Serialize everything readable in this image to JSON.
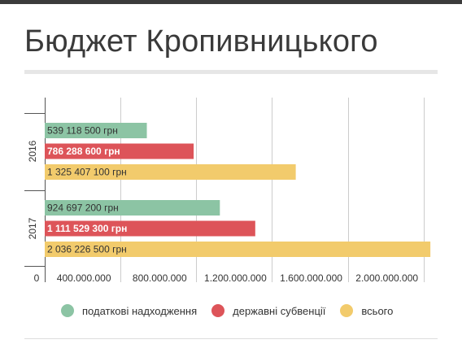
{
  "title": "Бюджет Кропивницького",
  "colors": {
    "tax": "#8cc4a4",
    "subsidies": "#dd5459",
    "total": "#f2cb6c",
    "grid": "#cccccc",
    "axis": "#555555"
  },
  "chart_data": {
    "type": "bar",
    "orientation": "horizontal",
    "categories": [
      "2016",
      "2017"
    ],
    "series": [
      {
        "name": "податкові надходження",
        "color": "#8cc4a4",
        "values": [
          539118500,
          924697200
        ],
        "labels": [
          "539 118 500 грн",
          "924 697 200 грн"
        ]
      },
      {
        "name": "державні субвенції",
        "color": "#dd5459",
        "values": [
          786288600,
          1111529300
        ],
        "labels": [
          "786 288 600 грн",
          "1 111 529 300 грн"
        ]
      },
      {
        "name": "всього",
        "color": "#f2cb6c",
        "values": [
          1325407100,
          2036226500
        ],
        "labels": [
          "1 325 407 100 грн",
          "2 036 226 500 грн"
        ]
      }
    ],
    "xticks": [
      0,
      400000000,
      800000000,
      1200000000,
      1600000000,
      2000000000
    ],
    "xtick_labels": [
      "0",
      "400.000.000",
      "800.000.000",
      "1.200.000.000",
      "1.600.000.000",
      "2.000.000.000"
    ],
    "xlim": [
      0,
      2040000000
    ],
    "grid": true,
    "legend_position": "bottom"
  }
}
